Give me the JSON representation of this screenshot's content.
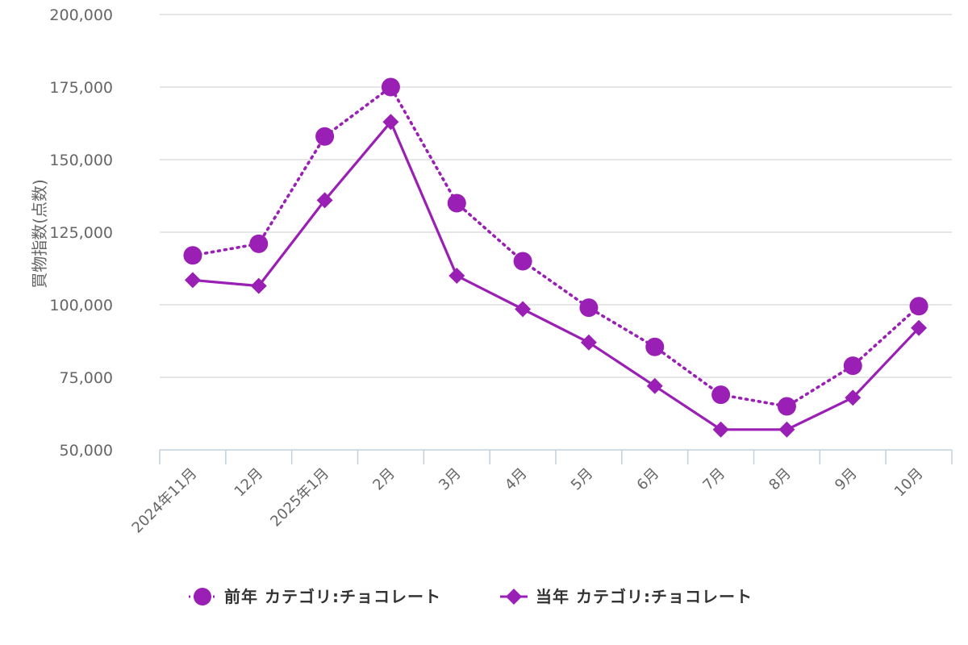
{
  "chart_data": {
    "type": "line",
    "ylabel": "買物指数(点数)",
    "xlabel": "",
    "ylim": [
      50000,
      200000
    ],
    "y_ticks": [
      50000,
      75000,
      100000,
      125000,
      150000,
      175000,
      200000
    ],
    "y_tick_labels": [
      "50,000",
      "75,000",
      "100,000",
      "125,000",
      "150,000",
      "175,000",
      "200,000"
    ],
    "grid": true,
    "legend_position": "bottom",
    "categories": [
      "2024年11月",
      "12月",
      "2025年1月",
      "2月",
      "3月",
      "4月",
      "5月",
      "6月",
      "7月",
      "8月",
      "9月",
      "10月"
    ],
    "series": [
      {
        "name": "前年 カテゴリ:チョコレート",
        "marker": "circle",
        "line_style": "dotted",
        "color": "#9a1fb4",
        "values": [
          117000,
          121000,
          158000,
          175000,
          135000,
          115000,
          99000,
          85500,
          69000,
          65000,
          79000,
          99500
        ]
      },
      {
        "name": "当年 カテゴリ:チョコレート",
        "marker": "diamond",
        "line_style": "solid",
        "color": "#9a1fb4",
        "values": [
          108500,
          106500,
          136000,
          163000,
          110000,
          98500,
          87000,
          72000,
          57000,
          57000,
          68000,
          92000
        ]
      }
    ]
  }
}
